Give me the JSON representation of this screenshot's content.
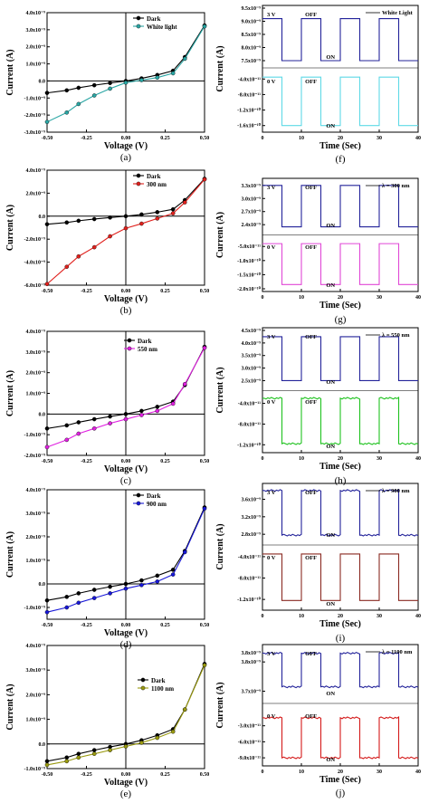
{
  "colors": {
    "dark_series": "#000000",
    "iv_a": "#2aa6a4",
    "iv_b": "#e0201c",
    "iv_c": "#e020e0",
    "iv_d": "#1818d8",
    "iv_e": "#9a9a10",
    "top_trace": "#23239a",
    "tr_f": "#5fd9e6",
    "tr_g": "#e048d6",
    "tr_h": "#1fc21f",
    "tr_i": "#8a2a22",
    "tr_j": "#d41a1a"
  },
  "chart_data": [
    {
      "id": "a",
      "panel_label": "(a)",
      "type": "line",
      "xlabel": "Voltage (V)",
      "ylabel": "Current (A)",
      "xlim": [
        -0.5,
        0.5
      ],
      "ylim": [
        -3e-09,
        4e-09
      ],
      "xticks": [
        "-0.50",
        "-0.25",
        "0.00",
        "0.25",
        "0.50"
      ],
      "yticks": [
        {
          "v": -3e-09,
          "t": "-3.0x10⁻⁹"
        },
        {
          "v": -2e-09,
          "t": "-2.0x10⁻⁹"
        },
        {
          "v": -1e-09,
          "t": "-1.0x10⁻⁹"
        },
        {
          "v": 0,
          "t": "0.0"
        },
        {
          "v": 1e-09,
          "t": "1.0x10⁻⁹"
        },
        {
          "v": 2e-09,
          "t": "2.0x10⁻⁹"
        },
        {
          "v": 3e-09,
          "t": "3.0x10⁻⁹"
        },
        {
          "v": 4e-09,
          "t": "4.0x10⁻⁹"
        }
      ],
      "legend_position": "top-left",
      "series": [
        {
          "name": "Dark",
          "color_key": "dark_series",
          "x": [
            -0.5,
            -0.375,
            -0.3,
            -0.2,
            -0.1,
            0,
            0.1,
            0.2,
            0.3,
            0.375,
            0.5
          ],
          "y": [
            -7e-10,
            -5.5e-10,
            -4e-10,
            -2.5e-10,
            -1.2e-10,
            0,
            1.5e-10,
            3.5e-10,
            6e-10,
            1.4e-09,
            3.25e-09
          ]
        },
        {
          "name": "White light",
          "color_key": "iv_a",
          "x": [
            -0.5,
            -0.375,
            -0.3,
            -0.2,
            -0.1,
            0,
            0.1,
            0.2,
            0.3,
            0.375,
            0.5
          ],
          "y": [
            -2.4e-09,
            -1.85e-09,
            -1.35e-09,
            -8.5e-10,
            -4.5e-10,
            -1e-10,
            5e-11,
            2e-10,
            4.5e-10,
            1.3e-09,
            3.2e-09
          ]
        }
      ]
    },
    {
      "id": "b",
      "panel_label": "(b)",
      "type": "line",
      "xlabel": "Voltage (V)",
      "ylabel": "Current (A)",
      "xlim": [
        -0.5,
        0.5
      ],
      "ylim": [
        -6e-09,
        4e-09
      ],
      "xticks": [
        "-0.50",
        "-0.25",
        "0.00",
        "0.25",
        "0.50"
      ],
      "yticks": [
        {
          "v": -6e-09,
          "t": "-6.0x10⁻⁹"
        },
        {
          "v": -4e-09,
          "t": "-4.0x10⁻⁹"
        },
        {
          "v": -2e-09,
          "t": "-2.0x10⁻⁹"
        },
        {
          "v": 0,
          "t": "0.0"
        },
        {
          "v": 2e-09,
          "t": "2.0x10⁻⁹"
        },
        {
          "v": 4e-09,
          "t": "4.0x10⁻⁹"
        }
      ],
      "legend_position": "top-left",
      "series": [
        {
          "name": "Dark",
          "color_key": "dark_series",
          "x": [
            -0.5,
            -0.375,
            -0.3,
            -0.2,
            -0.1,
            0,
            0.1,
            0.2,
            0.3,
            0.375,
            0.5
          ],
          "y": [
            -7e-10,
            -5.5e-10,
            -4e-10,
            -2.5e-10,
            -1.2e-10,
            0,
            1.5e-10,
            3.5e-10,
            6e-10,
            1.4e-09,
            3.25e-09
          ]
        },
        {
          "name": "300 nm",
          "color_key": "iv_b",
          "x": [
            -0.5,
            -0.375,
            -0.3,
            -0.2,
            -0.1,
            0,
            0.1,
            0.2,
            0.3,
            0.375,
            0.5
          ],
          "y": [
            -5.9e-09,
            -4.4e-09,
            -3.5e-09,
            -2.7e-09,
            -1.75e-09,
            -1.05e-09,
            -6.5e-10,
            -2e-10,
            2.5e-10,
            1.2e-09,
            3.2e-09
          ]
        }
      ]
    },
    {
      "id": "c",
      "panel_label": "(c)",
      "type": "line",
      "xlabel": "Voltage (V)",
      "ylabel": "Current (A)",
      "xlim": [
        -0.5,
        0.5
      ],
      "ylim": [
        -2e-09,
        4e-09
      ],
      "xticks": [
        "-0.50",
        "-0.25",
        "0.00",
        "0.25",
        "0.50"
      ],
      "yticks": [
        {
          "v": -2e-09,
          "t": "-2.0x10⁻⁹"
        },
        {
          "v": -1e-09,
          "t": "-1.0x10⁻⁹"
        },
        {
          "v": 0,
          "t": "0.0"
        },
        {
          "v": 1e-09,
          "t": "1.0x10⁻⁹"
        },
        {
          "v": 2e-09,
          "t": "2.0x10⁻⁹"
        },
        {
          "v": 3e-09,
          "t": "3.0x10⁻⁹"
        },
        {
          "v": 4e-09,
          "t": "4.0x10⁻⁹"
        }
      ],
      "legend_position": "top-center",
      "series": [
        {
          "name": "Dark",
          "color_key": "dark_series",
          "x": [
            -0.5,
            -0.375,
            -0.3,
            -0.2,
            -0.1,
            0,
            0.1,
            0.2,
            0.3,
            0.375,
            0.5
          ],
          "y": [
            -7e-10,
            -5.5e-10,
            -4e-10,
            -2.5e-10,
            -1.2e-10,
            0,
            1.5e-10,
            3.5e-10,
            6e-10,
            1.4e-09,
            3.25e-09
          ]
        },
        {
          "name": "550 nm",
          "color_key": "iv_c",
          "x": [
            -0.5,
            -0.375,
            -0.3,
            -0.2,
            -0.1,
            0,
            0.1,
            0.2,
            0.3,
            0.375,
            0.5
          ],
          "y": [
            -1.6e-09,
            -1.25e-09,
            -9.5e-10,
            -7e-10,
            -4.5e-10,
            -2.5e-10,
            -5e-11,
            1.5e-10,
            5e-10,
            1.45e-09,
            3.2e-09
          ]
        }
      ]
    },
    {
      "id": "d",
      "panel_label": "(d)",
      "type": "line",
      "xlabel": "Voltage (V)",
      "ylabel": "Current (A)",
      "xlim": [
        -0.5,
        0.5
      ],
      "ylim": [
        -1.5e-09,
        4e-09
      ],
      "xticks": [
        "-0.50",
        "-0.25",
        "0.00",
        "0.25",
        "0.50"
      ],
      "yticks": [
        {
          "v": -1e-09,
          "t": "-1.0x10⁻⁹"
        },
        {
          "v": 0,
          "t": "0.0"
        },
        {
          "v": 1e-09,
          "t": "1.0x10⁻⁹"
        },
        {
          "v": 2e-09,
          "t": "2.0x10⁻⁹"
        },
        {
          "v": 3e-09,
          "t": "3.0x10⁻⁹"
        },
        {
          "v": 4e-09,
          "t": "4.0x10⁻⁹"
        }
      ],
      "legend_position": "top-left",
      "series": [
        {
          "name": "Dark",
          "color_key": "dark_series",
          "x": [
            -0.5,
            -0.375,
            -0.3,
            -0.2,
            -0.1,
            0,
            0.1,
            0.2,
            0.3,
            0.375,
            0.5
          ],
          "y": [
            -7e-10,
            -5.5e-10,
            -4e-10,
            -2.5e-10,
            -1.2e-10,
            0,
            1.5e-10,
            3.5e-10,
            6e-10,
            1.4e-09,
            3.25e-09
          ]
        },
        {
          "name": "900 nm",
          "color_key": "iv_d",
          "x": [
            -0.5,
            -0.375,
            -0.3,
            -0.2,
            -0.1,
            0,
            0.1,
            0.2,
            0.3,
            0.375,
            0.5
          ],
          "y": [
            -1.2e-09,
            -1e-09,
            -8e-10,
            -6e-10,
            -4e-10,
            -2e-10,
            -5e-11,
            1e-10,
            4e-10,
            1.35e-09,
            3.2e-09
          ]
        }
      ]
    },
    {
      "id": "e",
      "panel_label": "(e)",
      "type": "line",
      "xlabel": "Voltage (V)",
      "ylabel": "Current (A)",
      "xlim": [
        -0.5,
        0.5
      ],
      "ylim": [
        -1e-09,
        4e-09
      ],
      "xticks": [
        "-0.50",
        "-0.25",
        "0.00",
        "0.25",
        "0.50"
      ],
      "yticks": [
        {
          "v": -1e-09,
          "t": "-1.0x10⁻⁹"
        },
        {
          "v": 0,
          "t": "0.0"
        },
        {
          "v": 1e-09,
          "t": "1.0x10⁻⁹"
        },
        {
          "v": 2e-09,
          "t": "2.0x10⁻⁹"
        },
        {
          "v": 3e-09,
          "t": "3.0x10⁻⁹"
        },
        {
          "v": 4e-09,
          "t": "4.0x10⁻⁹"
        }
      ],
      "legend_position": "center-right",
      "series": [
        {
          "name": "Dark",
          "color_key": "dark_series",
          "x": [
            -0.5,
            -0.375,
            -0.3,
            -0.2,
            -0.1,
            0,
            0.1,
            0.2,
            0.3,
            0.375,
            0.5
          ],
          "y": [
            -7e-10,
            -5.5e-10,
            -4e-10,
            -2.5e-10,
            -1.2e-10,
            0,
            1.5e-10,
            3.5e-10,
            6e-10,
            1.4e-09,
            3.25e-09
          ]
        },
        {
          "name": "1100 nm",
          "color_key": "iv_e",
          "x": [
            -0.5,
            -0.375,
            -0.3,
            -0.2,
            -0.1,
            0,
            0.1,
            0.2,
            0.3,
            0.375,
            0.5
          ],
          "y": [
            -8.5e-10,
            -7e-10,
            -5.5e-10,
            -4e-10,
            -2.5e-10,
            -1e-10,
            5e-11,
            2.5e-10,
            5e-10,
            1.4e-09,
            3.2e-09
          ]
        }
      ]
    },
    {
      "id": "f",
      "panel_label": "(f)",
      "type": "line",
      "xlabel": "Time (Sec)",
      "ylabel": "Current (A)",
      "legend_title": "White Light",
      "xlim": [
        0,
        40
      ],
      "xticks": [
        "0",
        "10",
        "20",
        "30",
        "40"
      ],
      "top": {
        "bias": "3 V",
        "ylim": [
          7.5e-09,
          9.5e-09
        ],
        "low": 7.5e-09,
        "high": 9.1e-09,
        "yticks": [
          {
            "v": 9.5e-09,
            "t": "9.5x10⁻⁹"
          },
          {
            "v": 9e-09,
            "t": "9.0x10⁻⁹"
          },
          {
            "v": 8.5e-09,
            "t": "8.5x10⁻⁹"
          },
          {
            "v": 8e-09,
            "t": "8.0x10⁻⁹"
          },
          {
            "v": 7.5e-09,
            "t": "7.5x10⁻⁹"
          }
        ],
        "off_label": "OFF",
        "on_label": "ON",
        "color_key": "top_trace"
      },
      "bottom": {
        "bias": "0 V",
        "ylim": [
          -1.7e-10,
          -3e-11
        ],
        "low": -1.6e-10,
        "high": -3.5e-11,
        "yticks": [
          {
            "v": -4e-11,
            "t": "-4.0x10⁻¹¹"
          },
          {
            "v": -8e-11,
            "t": "-8.0x10⁻¹¹"
          },
          {
            "v": -1.2e-10,
            "t": "-1.2x10⁻¹⁰"
          },
          {
            "v": -1.6e-10,
            "t": "-1.6x10⁻¹⁰"
          }
        ],
        "off_label": "OFF",
        "on_label": "ON",
        "color_key": "tr_f"
      },
      "on_intervals": [
        [
          5,
          10
        ],
        [
          15,
          20
        ],
        [
          25,
          30
        ],
        [
          35,
          40
        ]
      ]
    },
    {
      "id": "g",
      "panel_label": "(g)",
      "type": "line",
      "xlabel": "Time (Sec)",
      "ylabel": "Current (A)",
      "legend_title": "λ = 300 nm",
      "xlim": [
        0,
        40
      ],
      "xticks": [
        "0",
        "10",
        "20",
        "30",
        "40"
      ],
      "top": {
        "bias": "3 V",
        "ylim": [
          2.3e-09,
          3.4e-09
        ],
        "low": 2.35e-09,
        "high": 3.3e-09,
        "yticks": [
          {
            "v": 3.3e-09,
            "t": "3.3x10⁻⁹"
          },
          {
            "v": 3e-09,
            "t": "3.0x10⁻⁹"
          },
          {
            "v": 2.7e-09,
            "t": "2.7x10⁻⁹"
          },
          {
            "v": 2.4e-09,
            "t": "2.4x10⁻⁹"
          }
        ],
        "off_label": "OFF",
        "on_label": "ON",
        "color_key": "top_trace"
      },
      "bottom": {
        "bias": "0 V",
        "ylim": [
          -2e-10,
          -3e-11
        ],
        "low": -1.85e-10,
        "high": -4e-11,
        "yticks": [
          {
            "v": -5e-11,
            "t": "-5.0x10⁻¹¹"
          },
          {
            "v": -1e-10,
            "t": "-1.0x10⁻¹⁰"
          },
          {
            "v": -1.5e-10,
            "t": "-1.5x10⁻¹⁰"
          },
          {
            "v": -2e-10,
            "t": "-2.0x10⁻¹⁰"
          }
        ],
        "off_label": "OFF",
        "on_label": "ON",
        "color_key": "tr_g"
      },
      "on_intervals": [
        [
          5,
          10
        ],
        [
          15,
          20
        ],
        [
          25,
          30
        ],
        [
          35,
          40
        ]
      ]
    },
    {
      "id": "h",
      "panel_label": "(h)",
      "type": "line",
      "xlabel": "Time (Sec)",
      "ylabel": "Current (A)",
      "legend_title": "λ = 550 nm",
      "xlim": [
        0,
        40
      ],
      "xticks": [
        "0",
        "10",
        "20",
        "30",
        "40"
      ],
      "top": {
        "bias": "3 V",
        "ylim": [
          2.3e-09,
          4.5e-09
        ],
        "low": 2.5e-09,
        "high": 4.25e-09,
        "yticks": [
          {
            "v": 4.5e-09,
            "t": "4.5x10⁻⁹"
          },
          {
            "v": 4e-09,
            "t": "4.0x10⁻⁹"
          },
          {
            "v": 3.5e-09,
            "t": "3.5x10⁻⁹"
          },
          {
            "v": 3e-09,
            "t": "3.0x10⁻⁹"
          },
          {
            "v": 2.5e-09,
            "t": "2.5x10⁻⁹"
          }
        ],
        "off_label": "OFF",
        "on_label": "ON",
        "color_key": "top_trace"
      },
      "bottom": {
        "bias": "0 V",
        "ylim": [
          -1.3e-10,
          -2.5e-11
        ],
        "low": -1.18e-10,
        "high": -3e-11,
        "yticks": [
          {
            "v": -4e-11,
            "t": "-4.0x10⁻¹¹"
          },
          {
            "v": -8e-11,
            "t": "-8.0x10⁻¹¹"
          },
          {
            "v": -1.2e-10,
            "t": "-1.2x10⁻¹⁰"
          }
        ],
        "off_label": "OFF",
        "on_label": "ON",
        "color_key": "tr_h"
      },
      "on_intervals": [
        [
          5,
          10
        ],
        [
          15,
          20
        ],
        [
          25,
          30
        ],
        [
          35,
          40
        ]
      ]
    },
    {
      "id": "i",
      "panel_label": "(i)",
      "type": "line",
      "xlabel": "Time (Sec)",
      "ylabel": "Current (A)",
      "legend_title": "λ = 900 nm",
      "xlim": [
        0,
        40
      ],
      "xticks": [
        "0",
        "10",
        "20",
        "30",
        "40"
      ],
      "top": {
        "bias": "3 V",
        "ylim": [
          2.7e-09,
          3.9e-09
        ],
        "low": 2.78e-09,
        "high": 3.8e-09,
        "yticks": [
          {
            "v": 3.6e-09,
            "t": "3.6x10⁻⁹"
          },
          {
            "v": 3.2e-09,
            "t": "3.2x10⁻⁹"
          },
          {
            "v": 2.8e-09,
            "t": "2.8x10⁻⁹"
          }
        ],
        "off_label": "OFF",
        "on_label": "ON",
        "color_key": "top_trace"
      },
      "bottom": {
        "bias": "0 V",
        "ylim": [
          -1.35e-10,
          -3e-11
        ],
        "low": -1.22e-10,
        "high": -3.5e-11,
        "yticks": [
          {
            "v": -4e-11,
            "t": "-4.0x10⁻¹¹"
          },
          {
            "v": -8e-11,
            "t": "-8.0x10⁻¹¹"
          },
          {
            "v": -1.2e-10,
            "t": "-1.2x10⁻¹⁰"
          }
        ],
        "off_label": "OFF",
        "on_label": "ON",
        "color_key": "tr_i"
      },
      "on_intervals": [
        [
          5,
          10
        ],
        [
          15,
          20
        ],
        [
          25,
          30
        ],
        [
          35,
          40
        ]
      ]
    },
    {
      "id": "j",
      "panel_label": "(j)",
      "type": "line",
      "xlabel": "Time (Sec)",
      "ylabel": "Current (A)",
      "legend_title": "λ = 1100 nm",
      "xlim": [
        0,
        40
      ],
      "xticks": [
        "0",
        "10",
        "20",
        "30",
        "40"
      ],
      "top": {
        "bias": "3 V",
        "ylim": [
          3.68e-09,
          3.85e-09
        ],
        "low": 3.715e-09,
        "high": 3.83e-09,
        "yticks": [
          {
            "v": 3.8e-09,
            "t": "3.8x10⁻⁹"
          },
          {
            "v": 3.7e-09,
            "t": "3.7x10⁻⁹"
          }
        ],
        "extra_ytick_text": "3.8x10⁻⁹",
        "off_label": "OFF",
        "on_label": "ON",
        "color_key": "top_trace"
      },
      "bottom": {
        "bias": "0 V",
        "ylim": [
          -1e-10,
          0
        ],
        "low": -9e-11,
        "high": -1.5e-11,
        "yticks": [
          {
            "v": -3e-11,
            "t": "-3.0x10⁻¹¹"
          },
          {
            "v": -6e-11,
            "t": "-6.0x10⁻¹¹"
          },
          {
            "v": -9e-11,
            "t": "-9.0x10⁻¹¹"
          }
        ],
        "off_label": "OFF",
        "on_label": "ON",
        "color_key": "tr_j"
      },
      "on_intervals": [
        [
          5,
          10
        ],
        [
          15,
          20
        ],
        [
          25,
          30
        ],
        [
          35,
          40
        ]
      ]
    }
  ]
}
